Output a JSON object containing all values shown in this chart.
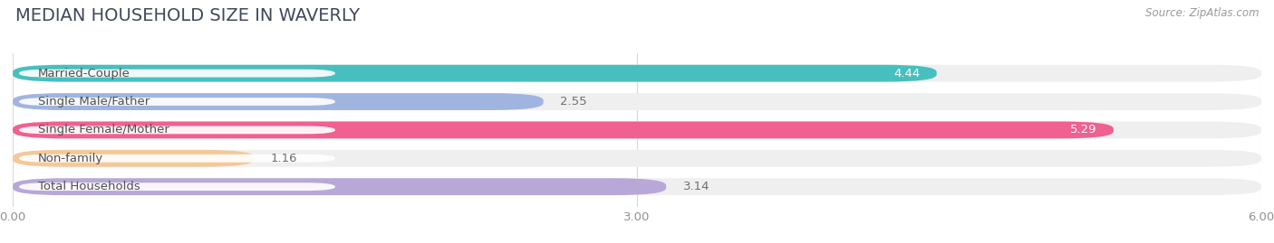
{
  "title": "MEDIAN HOUSEHOLD SIZE IN WAVERLY",
  "source": "Source: ZipAtlas.com",
  "categories": [
    "Married-Couple",
    "Single Male/Father",
    "Single Female/Mother",
    "Non-family",
    "Total Households"
  ],
  "values": [
    4.44,
    2.55,
    5.29,
    1.16,
    3.14
  ],
  "bar_colors": [
    "#48bfbf",
    "#a0b4e0",
    "#f06090",
    "#f5c898",
    "#b8a8d8"
  ],
  "bar_bg_color": "#efefef",
  "background_color": "#ffffff",
  "xlim": [
    0,
    6.0
  ],
  "xtick_labels": [
    "0.00",
    "3.00",
    "6.00"
  ],
  "xtick_values": [
    0.0,
    3.0,
    6.0
  ],
  "title_fontsize": 14,
  "label_fontsize": 9.5,
  "value_fontsize": 9.5,
  "source_fontsize": 8.5,
  "title_color": "#404858",
  "label_color": "#505050",
  "value_color_inside": "#ffffff",
  "value_color_outside": "#707070",
  "tick_color": "#909090",
  "grid_color": "#d8d8d8",
  "label_bg_color": "#ffffff"
}
